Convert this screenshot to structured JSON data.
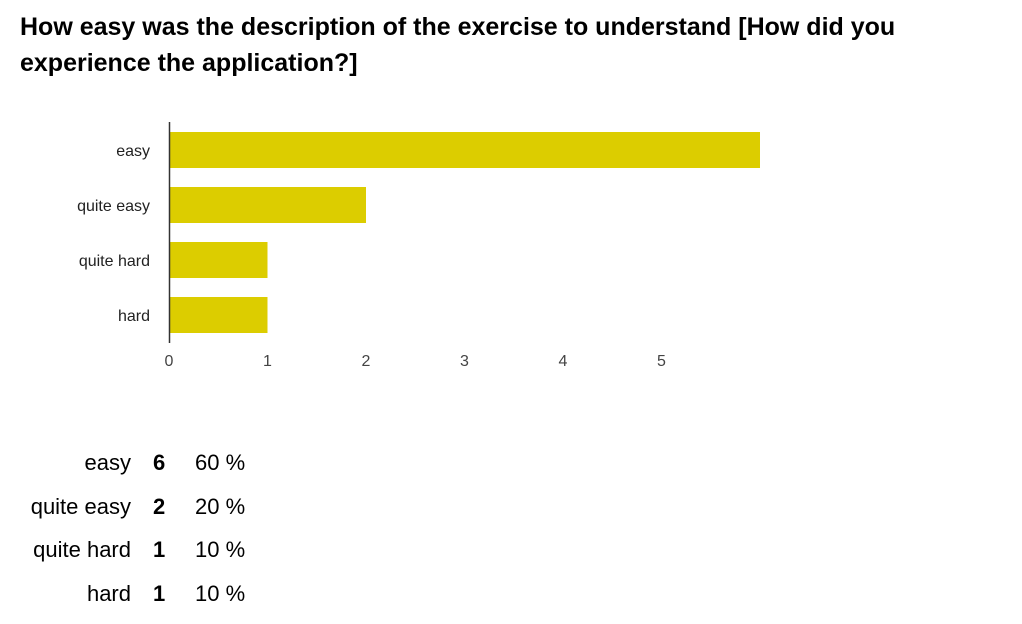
{
  "chart_data": {
    "type": "bar",
    "orientation": "horizontal",
    "title": "How easy was the description of the exercise to understand [How did you experience the application?]",
    "categories": [
      "easy",
      "quite easy",
      "quite hard",
      "hard"
    ],
    "values": [
      6,
      2,
      1,
      1
    ],
    "xlim": [
      0,
      6
    ],
    "xticks": [
      0,
      1,
      2,
      3,
      4,
      5
    ],
    "grid": false,
    "bar_color": "#dccd00"
  },
  "summary": [
    {
      "label": "easy",
      "count": "6",
      "percent": "60 %"
    },
    {
      "label": "quite easy",
      "count": "2",
      "percent": "20 %"
    },
    {
      "label": "quite hard",
      "count": "1",
      "percent": "10 %"
    },
    {
      "label": "hard",
      "count": "1",
      "percent": "10 %"
    }
  ]
}
